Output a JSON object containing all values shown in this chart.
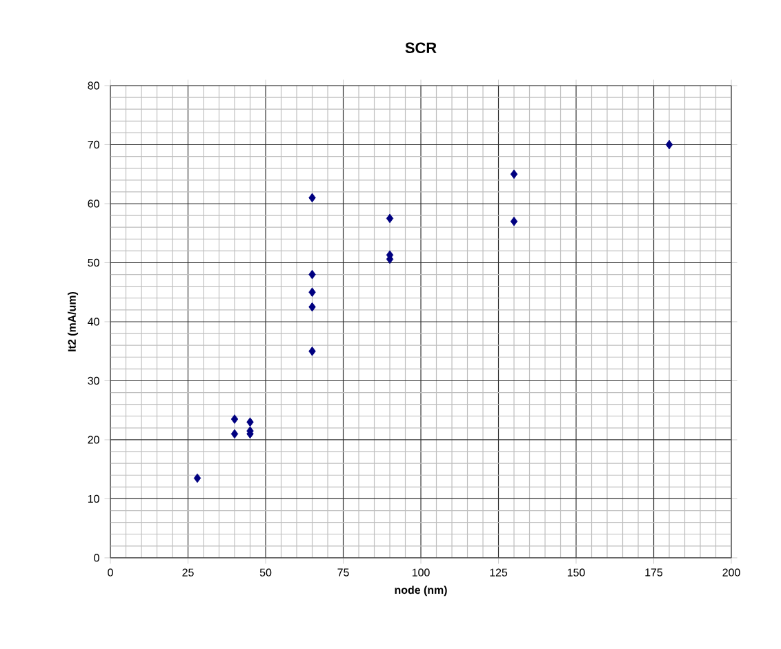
{
  "chart_data": {
    "type": "scatter",
    "title": "SCR",
    "xlabel": "node (nm)",
    "ylabel": "It2 (mA/um)",
    "x": [
      28,
      40,
      40,
      45,
      45,
      45,
      65,
      65,
      65,
      65,
      65,
      90,
      90,
      90,
      130,
      130,
      180
    ],
    "values": [
      13.5,
      23.5,
      21,
      23,
      21.5,
      21,
      61,
      48,
      45,
      42.5,
      35,
      57.5,
      51.3,
      50.6,
      65,
      57,
      70
    ],
    "color": "#000080",
    "marker": "diamond",
    "legend": false,
    "grid": true,
    "xlim": [
      0,
      200
    ],
    "xticks": [
      0,
      25,
      50,
      75,
      100,
      125,
      150,
      175,
      200
    ],
    "ylim": [
      0,
      80
    ],
    "yticks": [
      0,
      10,
      20,
      30,
      40,
      50,
      60,
      70,
      80
    ]
  }
}
